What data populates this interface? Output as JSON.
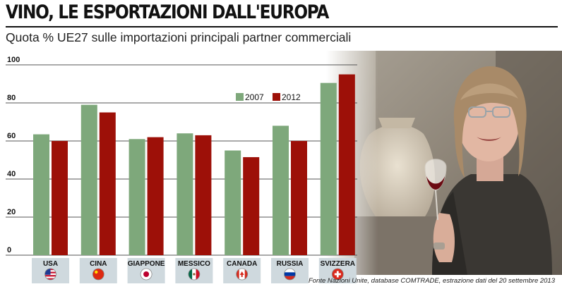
{
  "header": {
    "title": "VINO, LE ESPORTAZIONI DALL'EUROPA",
    "subtitle": "Quota % UE27 sulle importazioni principali partner commerciali"
  },
  "source": "Fonte Nazioni Unite, database COMTRADE, estrazione dati del 20 settembre 2013",
  "colors": {
    "s2007": "#7ea87b",
    "s2012": "#9d1008",
    "label_bg": "#cfd9de"
  },
  "chart_data": {
    "type": "bar",
    "title": "VINO, LE ESPORTAZIONI DALL'EUROPA",
    "subtitle": "Quota % UE27 sulle importazioni principali partner commerciali",
    "categories": [
      "USA",
      "CINA",
      "GIAPPONE",
      "MESSICO",
      "CANADA",
      "RUSSIA",
      "SVIZZERA"
    ],
    "flags": [
      "usa-flag",
      "china-flag",
      "japan-flag",
      "mexico-flag",
      "canada-flag",
      "russia-flag",
      "switzerland-flag"
    ],
    "series": [
      {
        "name": "2007",
        "values": [
          63.5,
          79,
          61,
          64,
          55,
          68,
          90.5
        ]
      },
      {
        "name": "2012",
        "values": [
          60,
          75,
          62,
          63,
          51.5,
          60,
          95
        ]
      }
    ],
    "ylim": [
      0,
      100
    ],
    "yticks": [
      "0",
      "20",
      "40",
      "60",
      "80",
      "100"
    ],
    "legend_position": "top-right",
    "grid": true
  }
}
